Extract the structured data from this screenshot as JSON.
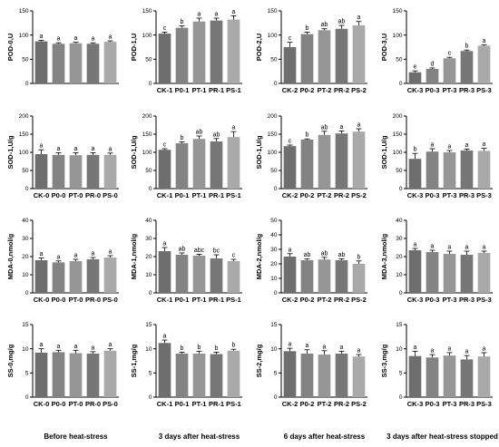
{
  "chart_data": {
    "type": "bar",
    "columns": [
      "Before heat-stress",
      "3 days after heat-stress",
      "6 days after heat-stress",
      "3 days after heat-stress stopped"
    ],
    "bar_colors": [
      "#6e6e6e",
      "#838383",
      "#969696",
      "#777777",
      "#a9a9a9"
    ],
    "panels": [
      {
        "ylabel": "POD-0,U",
        "categories": [
          "CK-0",
          "P0-0",
          "PT-0",
          "PR-0",
          "PS-0"
        ],
        "values": [
          87,
          82,
          83,
          82,
          86
        ],
        "errors": [
          2,
          2,
          2,
          2,
          2
        ],
        "sig": [
          "a",
          "a",
          "a",
          "a",
          "a"
        ],
        "ylim": [
          0,
          150
        ],
        "yticks": [
          0,
          50,
          100,
          150
        ],
        "show_cats": false
      },
      {
        "ylabel": "POD-1,U",
        "categories": [
          "CK-1",
          "P0-1",
          "PT-1",
          "PR-1",
          "PS-1"
        ],
        "values": [
          103,
          115,
          128,
          130,
          132
        ],
        "errors": [
          3,
          4,
          7,
          5,
          8
        ],
        "sig": [
          "c",
          "b",
          "a",
          "a",
          "a"
        ],
        "ylim": [
          0,
          150
        ],
        "yticks": [
          0,
          50,
          100,
          150
        ],
        "show_cats": true
      },
      {
        "ylabel": "POD-2,U",
        "categories": [
          "CK-2",
          "P0-2",
          "PT-2",
          "PR-2",
          "PS-2"
        ],
        "values": [
          75,
          102,
          110,
          113,
          120
        ],
        "errors": [
          10,
          4,
          3,
          7,
          8
        ],
        "sig": [
          "c",
          "b",
          "ab",
          "ab",
          "a"
        ],
        "ylim": [
          0,
          150
        ],
        "yticks": [
          0,
          50,
          100,
          150
        ],
        "show_cats": true
      },
      {
        "ylabel": "POD-3,U",
        "categories": [
          "CK-3",
          "P0-3",
          "PT-3",
          "PR-3",
          "PS-3"
        ],
        "values": [
          23,
          30,
          52,
          67,
          78
        ],
        "errors": [
          3,
          2,
          2,
          2,
          2
        ],
        "sig": [
          "e",
          "d",
          "c",
          "b",
          "a"
        ],
        "ylim": [
          0,
          150
        ],
        "yticks": [
          0,
          50,
          100,
          150
        ],
        "show_cats": true
      },
      {
        "ylabel": "SOD-1,U/g",
        "categories": [
          "CK-0",
          "P0-0",
          "PT-0",
          "PR-0",
          "PS-0"
        ],
        "values": [
          95,
          93,
          92,
          93,
          93
        ],
        "errors": [
          12,
          6,
          7,
          6,
          5
        ],
        "sig": [
          "a",
          "a",
          "a",
          "a",
          "a"
        ],
        "ylim": [
          0,
          200
        ],
        "yticks": [
          0,
          50,
          100,
          150,
          200
        ],
        "show_cats": true
      },
      {
        "ylabel": "SOD-1,U/g",
        "categories": [
          "CK-1",
          "P0-1",
          "PT-1",
          "PR-1",
          "PS-1"
        ],
        "values": [
          107,
          125,
          137,
          130,
          142
        ],
        "errors": [
          3,
          4,
          8,
          8,
          15
        ],
        "sig": [
          "c",
          "b",
          "ab",
          "ab",
          "a"
        ],
        "ylim": [
          0,
          200
        ],
        "yticks": [
          0,
          50,
          100,
          150,
          200
        ],
        "show_cats": true
      },
      {
        "ylabel": "SOD-1,U/g",
        "categories": [
          "CK-2",
          "P0-2",
          "PT-2",
          "PR-2",
          "PS-2"
        ],
        "values": [
          117,
          135,
          148,
          152,
          157
        ],
        "errors": [
          3,
          2,
          10,
          7,
          8
        ],
        "sig": [
          "c",
          "b",
          "ab",
          "a",
          "a"
        ],
        "ylim": [
          0,
          200
        ],
        "yticks": [
          0,
          50,
          100,
          150,
          200
        ],
        "show_cats": true
      },
      {
        "ylabel": "SOD-1,U/g",
        "categories": [
          "CK-3",
          "P0-3",
          "PT-3",
          "PR-3",
          "PS-3"
        ],
        "values": [
          82,
          102,
          100,
          105,
          104
        ],
        "errors": [
          15,
          8,
          5,
          4,
          7
        ],
        "sig": [
          "b",
          "a",
          "a",
          "a",
          "a"
        ],
        "ylim": [
          0,
          200
        ],
        "yticks": [
          0,
          50,
          100,
          150,
          200
        ],
        "show_cats": true
      },
      {
        "ylabel": "MDA-0,nmol/g",
        "categories": [
          "CK-0",
          "P0-0",
          "PT-0",
          "PR-0",
          "PS-0"
        ],
        "values": [
          18,
          16.8,
          17.5,
          18.5,
          19.5
        ],
        "errors": [
          1.2,
          0.8,
          1,
          1,
          1
        ],
        "sig": [
          "a",
          "a",
          "a",
          "a",
          "a"
        ],
        "ylim": [
          0,
          40
        ],
        "yticks": [
          0,
          10,
          20,
          30,
          40
        ],
        "show_cats": true
      },
      {
        "ylabel": "MDA-1,nmol/g",
        "categories": [
          "CK-1",
          "P0-1",
          "PT-1",
          "PR-1",
          "PS-1"
        ],
        "values": [
          23,
          21,
          20.5,
          19,
          17.5
        ],
        "errors": [
          2,
          1,
          0.8,
          2,
          1
        ],
        "sig": [
          "a",
          "ab",
          "abc",
          "bc",
          "c"
        ],
        "ylim": [
          0,
          40
        ],
        "yticks": [
          0,
          10,
          20,
          30,
          40
        ],
        "show_cats": true
      },
      {
        "ylabel": "MDA-2,nmol/g",
        "categories": [
          "CK-2",
          "P0-2",
          "PT-2",
          "PR-2",
          "PS-2"
        ],
        "values": [
          25,
          22.5,
          23,
          22.5,
          20
        ],
        "errors": [
          2,
          1,
          1.5,
          1,
          2
        ],
        "sig": [
          "a",
          "ab",
          "ab",
          "ab",
          "b"
        ],
        "ylim": [
          0,
          50
        ],
        "yticks": [
          0,
          10,
          20,
          30,
          40,
          50
        ],
        "show_cats": true
      },
      {
        "ylabel": "MDA-3,nmol/g",
        "categories": [
          "CK-3",
          "P0-3",
          "PT-3",
          "PR-3",
          "PS-3"
        ],
        "values": [
          23.5,
          22.5,
          21.5,
          21,
          22
        ],
        "errors": [
          1,
          1,
          1.5,
          2,
          1
        ],
        "sig": [
          "a",
          "a",
          "a",
          "a",
          "a"
        ],
        "ylim": [
          0,
          40
        ],
        "yticks": [
          0,
          10,
          20,
          30,
          40
        ],
        "show_cats": true
      },
      {
        "ylabel": "SS-0,mg/g",
        "categories": [
          "CK-0",
          "P0-0",
          "PT-0",
          "PR-0",
          "PS-0"
        ],
        "values": [
          9.2,
          9.3,
          9.1,
          9,
          9.6
        ],
        "errors": [
          0.8,
          0.4,
          0.6,
          0.4,
          0.4
        ],
        "sig": [
          "a",
          "a",
          "a",
          "a",
          "a"
        ],
        "ylim": [
          0,
          15
        ],
        "yticks": [
          0,
          5,
          10,
          15
        ],
        "show_cats": true
      },
      {
        "ylabel": "SS-1,mg/g",
        "categories": [
          "CK-1",
          "P0-1",
          "PT-1",
          "PR-1",
          "PS-1"
        ],
        "values": [
          11.2,
          9,
          9,
          8.9,
          9.6
        ],
        "errors": [
          0.6,
          0.3,
          0.5,
          0.4,
          0.3
        ],
        "sig": [
          "a",
          "b",
          "b",
          "b",
          "b"
        ],
        "ylim": [
          0,
          15
        ],
        "yticks": [
          0,
          5,
          10,
          15
        ],
        "show_cats": true
      },
      {
        "ylabel": "SS-2,mg/g",
        "categories": [
          "CK-2",
          "P0-2",
          "PT-2",
          "PR-2",
          "PS-2"
        ],
        "values": [
          9.5,
          9,
          8.8,
          9,
          8.4
        ],
        "errors": [
          0.6,
          0.8,
          0.8,
          0.5,
          0.4
        ],
        "sig": [
          "a",
          "a",
          "a",
          "a",
          "a"
        ],
        "ylim": [
          0,
          15
        ],
        "yticks": [
          0,
          5,
          10,
          15
        ],
        "show_cats": true
      },
      {
        "ylabel": "SS-3,mg/g",
        "categories": [
          "CK-3",
          "P0-3",
          "PT-3",
          "PR-3",
          "PS-3"
        ],
        "values": [
          8.5,
          8.2,
          8.6,
          7.8,
          8.4
        ],
        "errors": [
          1,
          0.6,
          0.6,
          0.8,
          0.8
        ],
        "sig": [
          "a",
          "a",
          "a",
          "a",
          "a"
        ],
        "ylim": [
          0,
          15
        ],
        "yticks": [
          0,
          5,
          10,
          15
        ],
        "show_cats": true
      }
    ]
  }
}
